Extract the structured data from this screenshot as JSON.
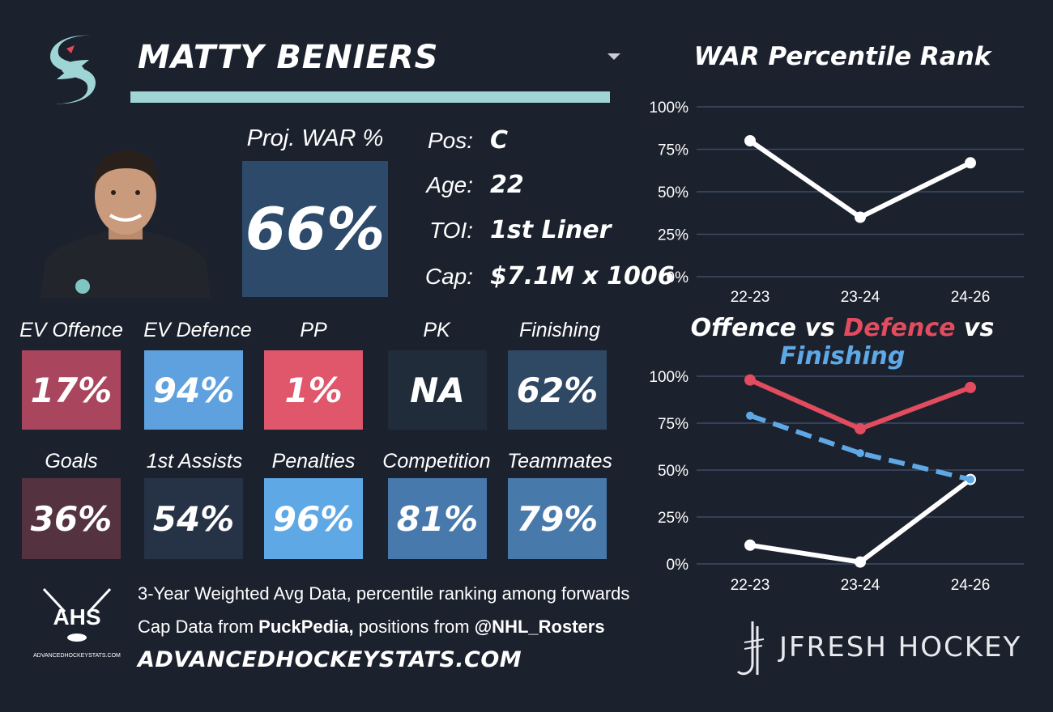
{
  "player": {
    "name": "MATTY BENIERS",
    "war_label": "Proj. WAR %",
    "war_value": "66%",
    "info": [
      {
        "label": "Pos:",
        "value": "C"
      },
      {
        "label": "Age:",
        "value": "22"
      },
      {
        "label": "TOI:",
        "value": "1st Liner"
      },
      {
        "label": "Cap:",
        "value": "$7.1M x 1006"
      }
    ]
  },
  "tiles_row1": [
    {
      "label": "EV Offence",
      "value": "17%",
      "color": "#a9465e"
    },
    {
      "label": "EV Defence",
      "value": "94%",
      "color": "#5ea1de"
    },
    {
      "label": "PP",
      "value": "1%",
      "color": "#e0566b"
    },
    {
      "label": "PK",
      "value": "NA",
      "color": "#212c3b"
    },
    {
      "label": "Finishing",
      "value": "62%",
      "color": "#2f4864"
    }
  ],
  "tiles_row2": [
    {
      "label": "Goals",
      "value": "36%",
      "color": "#55323f"
    },
    {
      "label": "1st Assists",
      "value": "54%",
      "color": "#263246"
    },
    {
      "label": "Penalties",
      "value": "96%",
      "color": "#5ea8e6"
    },
    {
      "label": "Competition",
      "value": "81%",
      "color": "#4779ad"
    },
    {
      "label": "Teammates",
      "value": "79%",
      "color": "#4879ab"
    }
  ],
  "chart_data": [
    {
      "type": "line",
      "title": "WAR Percentile Rank",
      "categories": [
        "22-23",
        "23-24",
        "24-26"
      ],
      "y_ticks": [
        "0%",
        "25%",
        "50%",
        "75%",
        "100%"
      ],
      "ylim": [
        0,
        100
      ],
      "grid": true,
      "series": [
        {
          "values": [
            80,
            35,
            67
          ],
          "color": "#ffffff",
          "dashed": false
        }
      ]
    },
    {
      "type": "line",
      "title_parts": [
        {
          "text": "Offence",
          "color": "#ffffff"
        },
        {
          "text": "vs",
          "color": "#ffffff"
        },
        {
          "text": "Defence",
          "color": "#e24c5e"
        },
        {
          "text": "vs",
          "color": "#ffffff"
        },
        {
          "text": "Finishing",
          "color": "#5ea8e6"
        }
      ],
      "categories": [
        "22-23",
        "23-24",
        "24-26"
      ],
      "y_ticks": [
        "0%",
        "25%",
        "50%",
        "75%",
        "100%"
      ],
      "ylim": [
        0,
        100
      ],
      "grid": true,
      "series": [
        {
          "name": "Offence",
          "values": [
            10,
            1,
            45
          ],
          "color": "#ffffff",
          "dashed": false
        },
        {
          "name": "Defence",
          "values": [
            98,
            72,
            94
          ],
          "color": "#e24c5e",
          "dashed": false
        },
        {
          "name": "Finishing",
          "values": [
            79,
            59,
            45
          ],
          "color": "#5ea8e6",
          "dashed": true
        }
      ]
    }
  ],
  "footer": {
    "line1": "3-Year Weighted Avg Data, percentile ranking among forwards",
    "line2_prefix": "Cap Data from ",
    "line2_bold1": "PuckPedia,",
    "line2_mid": " positions from ",
    "line2_bold2": "@NHL_Rosters",
    "site": "ADVANCEDHOCKEYSTATS.COM",
    "ahs_text": "AHS",
    "ahs_small": "ADVANCEDHOCKEYSTATS.COM",
    "brand": "JFRESH HOCKEY"
  },
  "colors": {
    "background": "#1b212d",
    "underline": "#9fd5d4",
    "war_box": "#2d4a6b"
  }
}
